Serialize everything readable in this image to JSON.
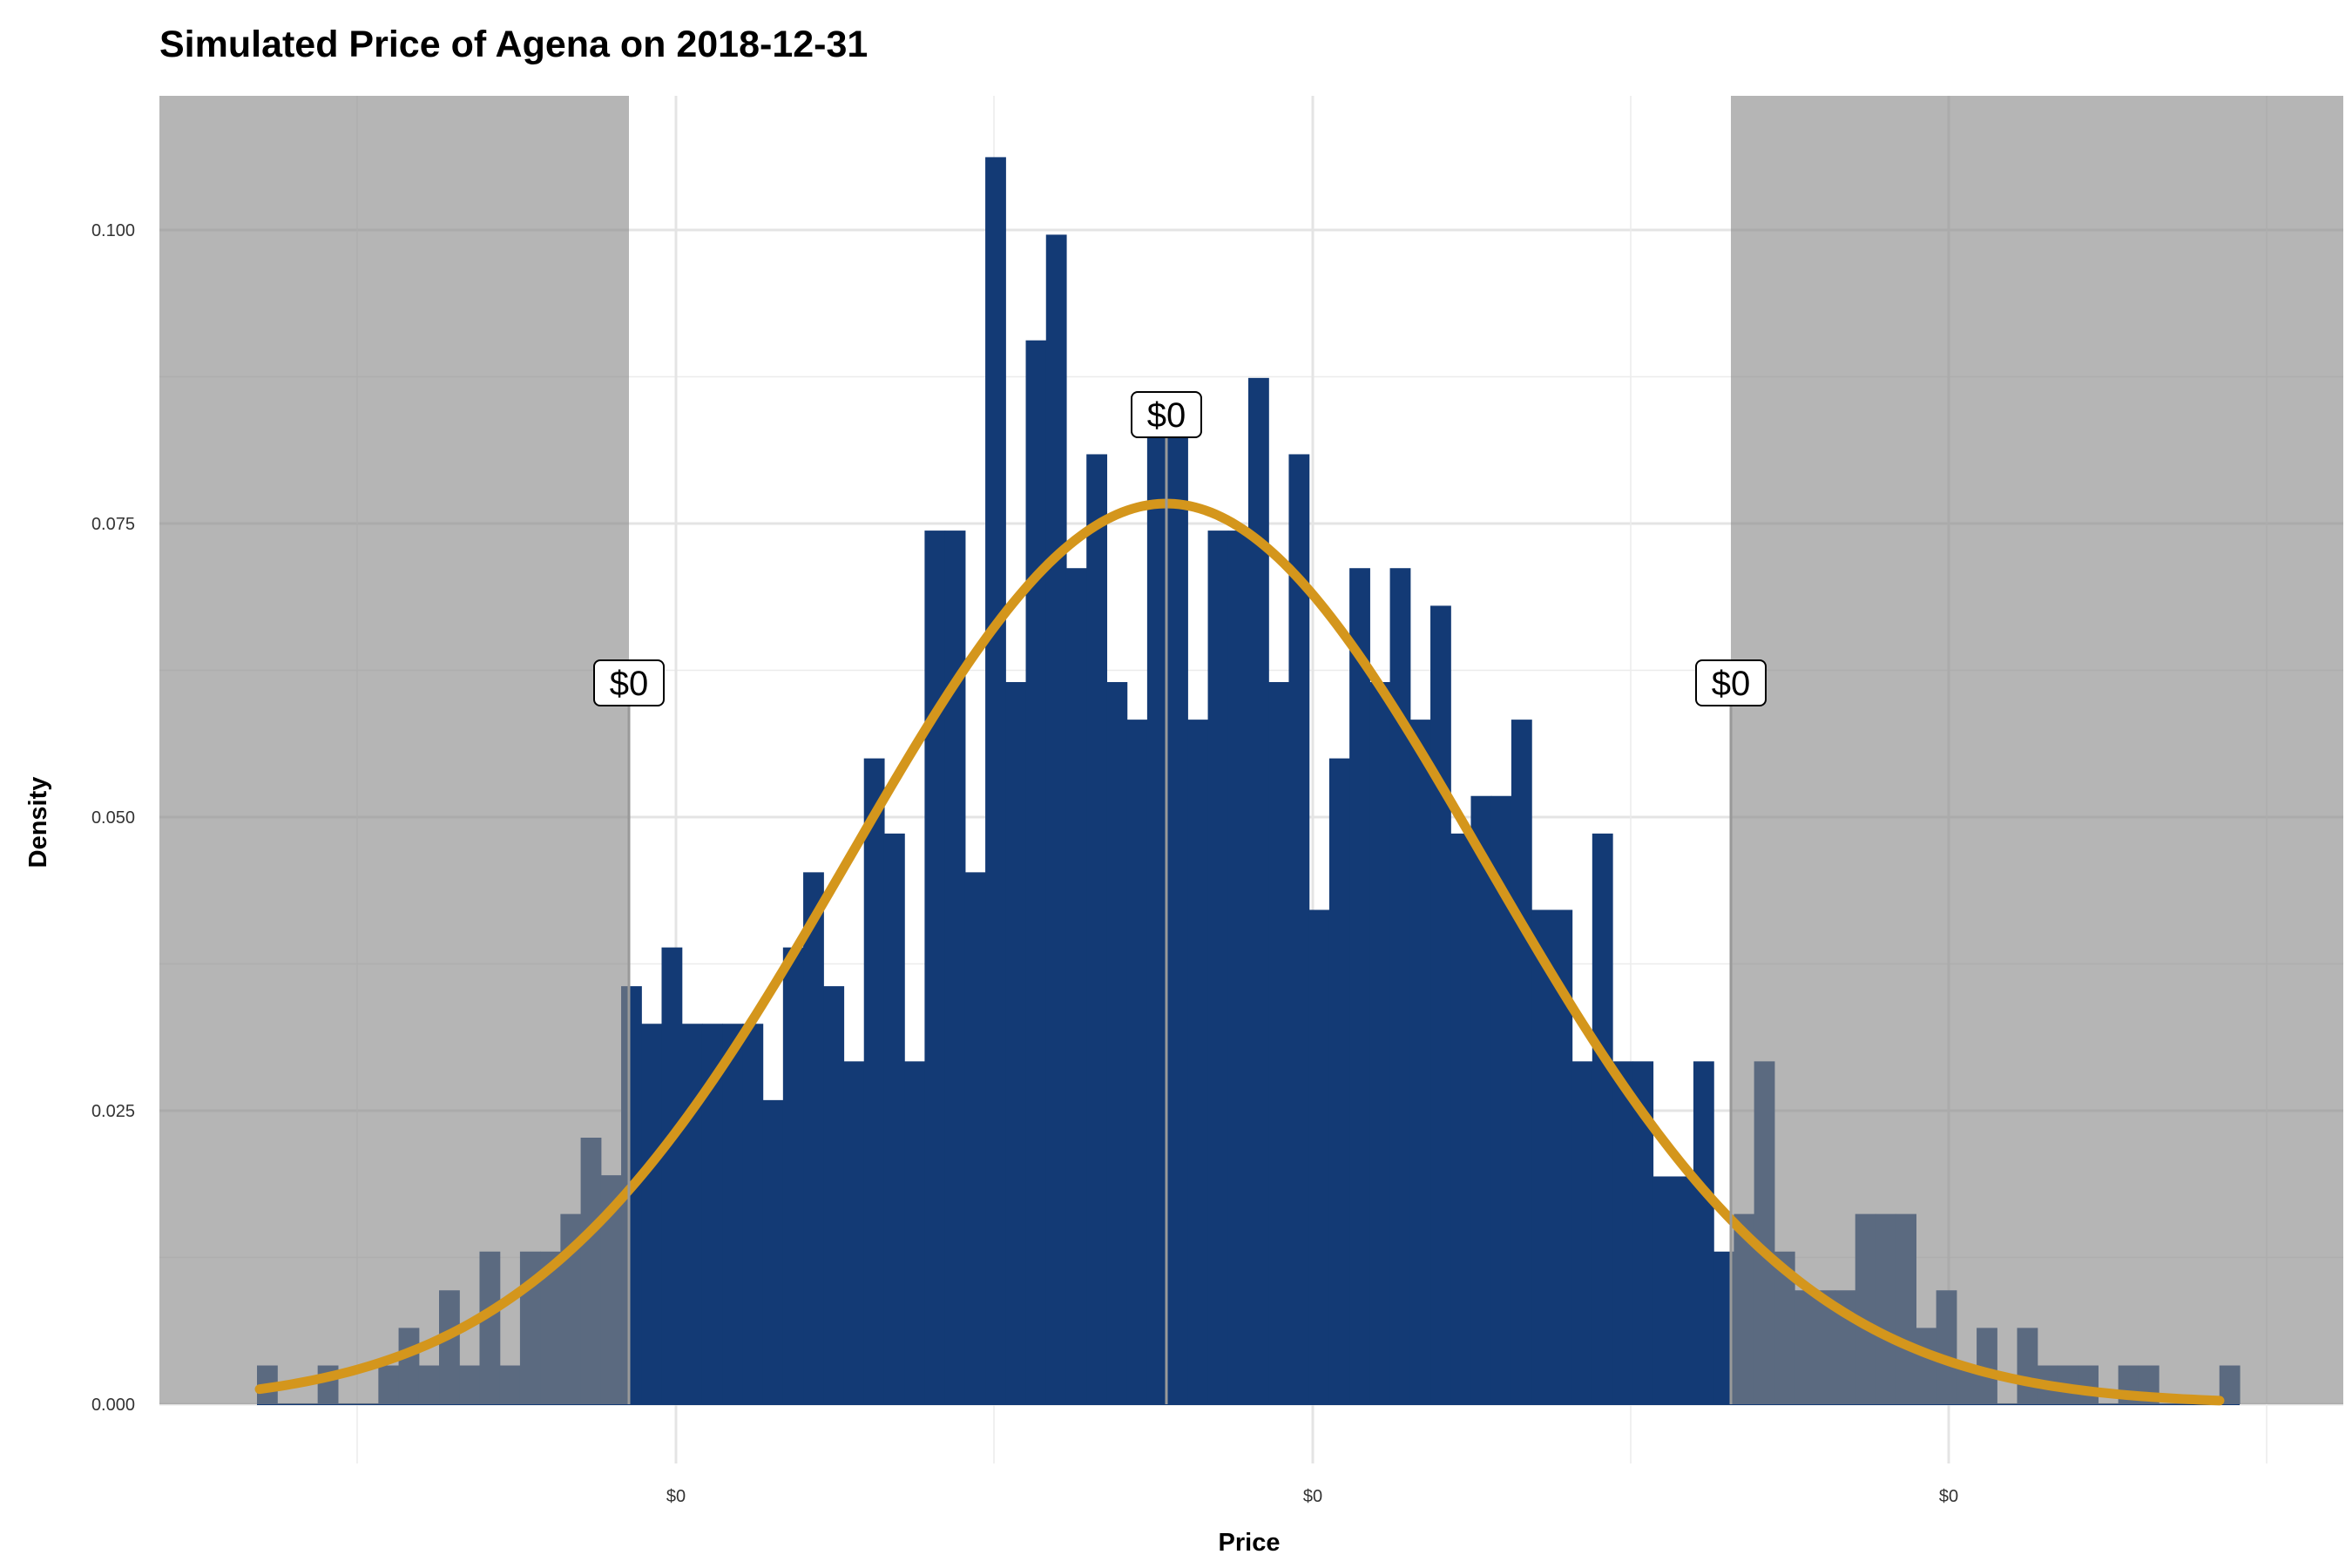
{
  "chart_data": {
    "type": "histogram",
    "title": "Simulated Price of Agena on 2018-12-31",
    "xlabel": "Price",
    "ylabel": "Density",
    "ylim": [
      0,
      0.1117
    ],
    "y_ticks": [
      {
        "value": 0.0,
        "label": "0.000"
      },
      {
        "value": 0.025,
        "label": "0.025"
      },
      {
        "value": 0.05,
        "label": "0.050"
      },
      {
        "value": 0.075,
        "label": "0.075"
      },
      {
        "value": 0.1,
        "label": "0.100"
      }
    ],
    "x_tick_labels": [
      "$0",
      "$0",
      "$0"
    ],
    "densities": [
      0.0033,
      0.0,
      0.0,
      0.0033,
      0.0,
      0.0,
      0.0033,
      0.0065,
      0.0033,
      0.0097,
      0.0033,
      0.013,
      0.0033,
      0.013,
      0.013,
      0.0162,
      0.0227,
      0.0195,
      0.0356,
      0.0324,
      0.0389,
      0.0324,
      0.0324,
      0.0324,
      0.0324,
      0.0259,
      0.0389,
      0.0453,
      0.0356,
      0.0292,
      0.055,
      0.0486,
      0.0292,
      0.0744,
      0.0744,
      0.0453,
      0.1062,
      0.0615,
      0.0906,
      0.0996,
      0.0712,
      0.0809,
      0.0615,
      0.0583,
      0.0841,
      0.0841,
      0.0583,
      0.0744,
      0.0744,
      0.0874,
      0.0615,
      0.0809,
      0.0421,
      0.055,
      0.0712,
      0.0615,
      0.0712,
      0.0583,
      0.068,
      0.0486,
      0.0518,
      0.0518,
      0.0583,
      0.0421,
      0.0421,
      0.0292,
      0.0486,
      0.0292,
      0.0292,
      0.0194,
      0.0194,
      0.0292,
      0.013,
      0.0162,
      0.0292,
      0.013,
      0.0097,
      0.0097,
      0.0097,
      0.0162,
      0.0162,
      0.0162,
      0.0065,
      0.0097,
      0.0033,
      0.0065,
      0.0,
      0.0065,
      0.0033,
      0.0033,
      0.0033,
      0.0,
      0.0033,
      0.0033,
      0.0,
      0.0,
      0.0,
      0.0033
    ],
    "density_curve": {
      "peak": 0.0767
    },
    "shaded_regions": [
      "lower 5% tail",
      "upper 5% tail"
    ],
    "callouts": [
      {
        "label": "$0",
        "position": "lower quantile"
      },
      {
        "label": "$0",
        "position": "mean"
      },
      {
        "label": "$0",
        "position": "upper quantile"
      }
    ],
    "colors": {
      "bars": "#133a75",
      "curve": "#d4961c",
      "shade": "#888888",
      "grid": "#e4e4e4"
    },
    "grid": true,
    "legend": "none"
  }
}
